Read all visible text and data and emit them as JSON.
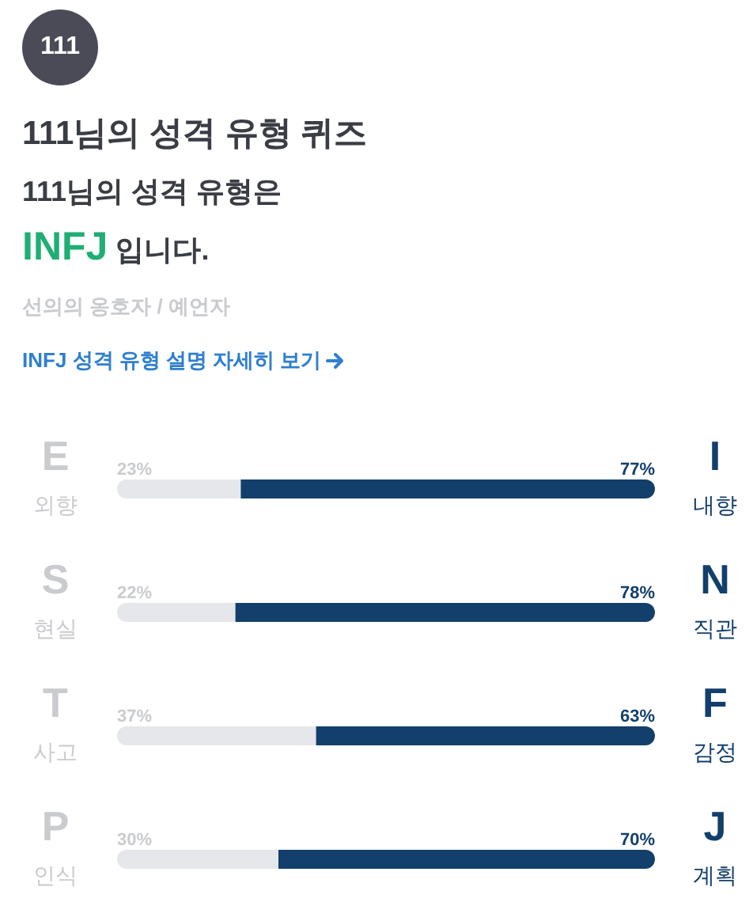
{
  "chart_data": {
    "type": "bar",
    "orientation": "horizontal",
    "stacked": true,
    "title": "111님의 성격 유형 퀴즈",
    "subtitle": "111님의 성격 유형은",
    "annotations": [
      "111",
      "INFJ 입니다.",
      "선의의 옹호자 / 예언자",
      "INFJ 성격 유형 설명 자세히 보기"
    ],
    "categories": [
      "E 외향",
      "S 현실",
      "T 사고",
      "P 인식"
    ],
    "y2_categories": [
      "I 내향",
      "N 직관",
      "F 감정",
      "J 계획"
    ],
    "series": [
      {
        "color": "#e5e7ea",
        "values": [
          23,
          22,
          37,
          30
        ],
        "value_labels": [
          "23%",
          "22%",
          "37%",
          "30%"
        ]
      },
      {
        "color": "#123f6b",
        "values": [
          77,
          78,
          63,
          70
        ],
        "value_labels": [
          "77%",
          "78%",
          "63%",
          "70%"
        ]
      }
    ],
    "tick_labels": false
  }
}
